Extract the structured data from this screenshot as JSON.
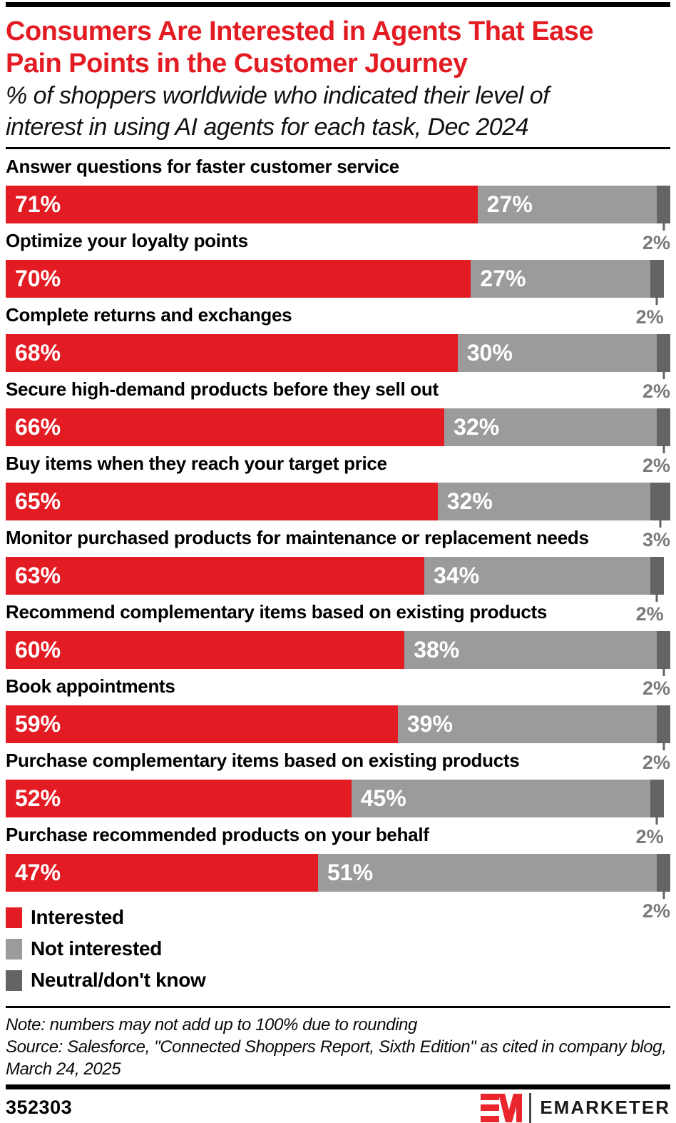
{
  "header": {
    "title_lines": [
      "Consumers Are Interested in Agents That Ease",
      "Pain Points in the Customer Journey"
    ],
    "subtitle_lines": [
      "% of shoppers worldwide who indicated their level of",
      "interest in using AI agents for each task, Dec 2024"
    ]
  },
  "chart_data": {
    "type": "bar",
    "orientation": "horizontal-stacked",
    "unit": "%",
    "x_range": [
      0,
      100
    ],
    "grid": false,
    "legend_position": "bottom-left",
    "categories": [
      "Answer questions for faster customer service",
      "Optimize your loyalty points",
      "Complete returns and exchanges",
      "Secure high-demand products before they sell out",
      "Buy items when they reach your target price",
      "Monitor purchased products for maintenance or replacement needs",
      "Recommend complementary items based on existing products",
      "Book appointments",
      "Purchase complementary items based on existing products",
      "Purchase recommended products on your behalf"
    ],
    "series": [
      {
        "name": "Interested",
        "color": "#e31b23",
        "values": [
          71,
          70,
          68,
          66,
          65,
          63,
          60,
          59,
          52,
          47
        ]
      },
      {
        "name": "Not interested",
        "color": "#9b9b9b",
        "values": [
          27,
          27,
          30,
          32,
          32,
          34,
          38,
          39,
          45,
          51
        ]
      },
      {
        "name": "Neutral/don't know",
        "color": "#636466",
        "values": [
          2,
          2,
          2,
          2,
          3,
          2,
          2,
          2,
          2,
          2
        ]
      }
    ]
  },
  "legend": {
    "items": [
      {
        "label": "Interested"
      },
      {
        "label": "Not interested"
      },
      {
        "label": "Neutral/don't know"
      }
    ]
  },
  "note": {
    "lines": [
      "Note: numbers may not add up to 100% due to rounding",
      "Source: Salesforce, \"Connected Shoppers Report, Sixth Edition\" as cited in company blog,",
      "March 24, 2025"
    ]
  },
  "footer": {
    "chart_id": "352303",
    "brand": "EMARKETER"
  },
  "colors": {
    "accent_red": "#e31b23",
    "bar_gray": "#9b9b9b",
    "bar_dark_gray": "#636466",
    "neutral_label_gray": "#797a7c",
    "logo_red": "#e9262d"
  }
}
